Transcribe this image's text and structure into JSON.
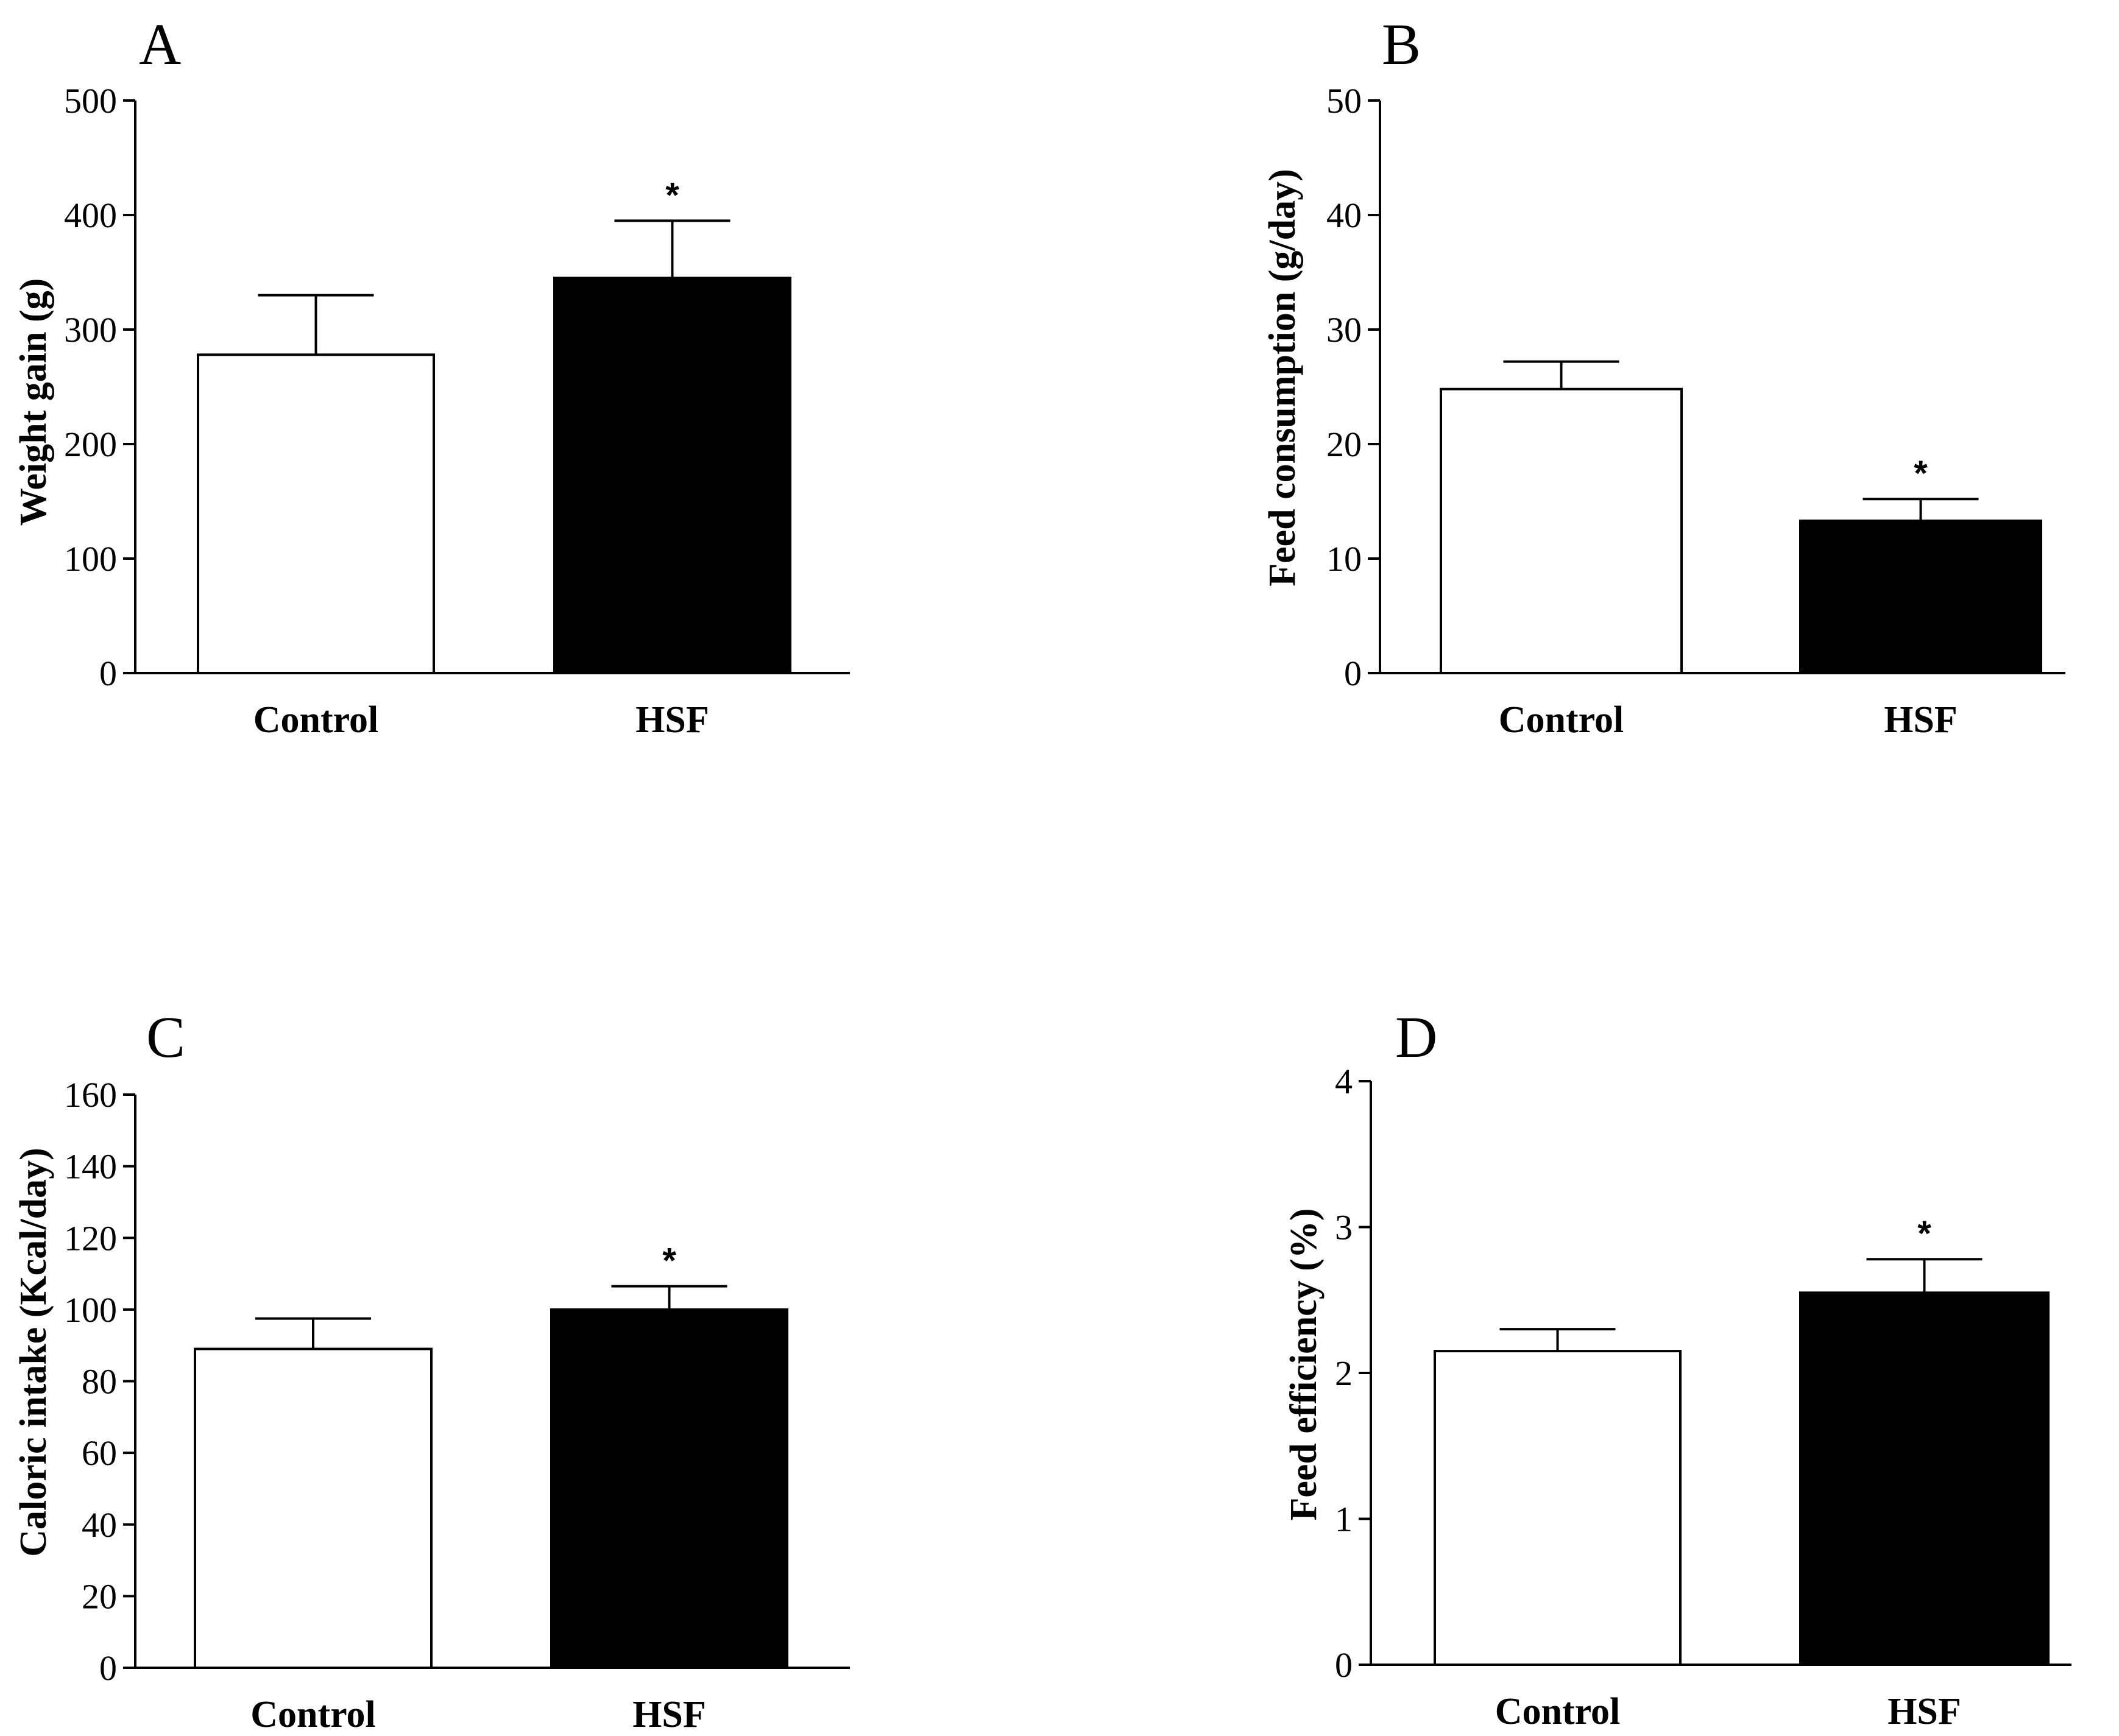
{
  "chart_data": [
    {
      "type": "bar",
      "panel": "A",
      "title": "",
      "xlabel": "",
      "ylabel": "Weight gain (g)",
      "ylim": [
        0,
        500
      ],
      "yticks": [
        0,
        100,
        200,
        300,
        400,
        500
      ],
      "categories": [
        "Control",
        "HSF"
      ],
      "values": [
        278,
        345
      ],
      "errors": [
        52,
        50
      ],
      "fills": [
        "#ffffff",
        "#000000"
      ],
      "significance": [
        "",
        "*"
      ]
    },
    {
      "type": "bar",
      "panel": "B",
      "title": "",
      "xlabel": "",
      "ylabel": "Feed consumption (g/day)",
      "ylim": [
        0,
        50
      ],
      "yticks": [
        0,
        10,
        20,
        30,
        40,
        50
      ],
      "categories": [
        "Control",
        "HSF"
      ],
      "values": [
        24.8,
        13.3
      ],
      "errors": [
        2.4,
        1.9
      ],
      "fills": [
        "#ffffff",
        "#000000"
      ],
      "significance": [
        "",
        "*"
      ]
    },
    {
      "type": "bar",
      "panel": "C",
      "title": "",
      "xlabel": "",
      "ylabel": "Caloric intake (Kcal/day)",
      "ylim": [
        0,
        160
      ],
      "yticks": [
        0,
        20,
        40,
        60,
        80,
        100,
        120,
        140,
        160
      ],
      "categories": [
        "Control",
        "HSF"
      ],
      "values": [
        89,
        100
      ],
      "errors": [
        8.5,
        6.5
      ],
      "fills": [
        "#ffffff",
        "#000000"
      ],
      "significance": [
        "",
        "*"
      ]
    },
    {
      "type": "bar",
      "panel": "D",
      "title": "",
      "xlabel": "",
      "ylabel": "Feed efficiency (%)",
      "ylim": [
        0,
        4
      ],
      "yticks": [
        0,
        1,
        2,
        3,
        4
      ],
      "categories": [
        "Control",
        "HSF"
      ],
      "values": [
        2.15,
        2.55
      ],
      "errors": [
        0.15,
        0.23
      ],
      "fills": [
        "#ffffff",
        "#000000"
      ],
      "significance": [
        "",
        "*"
      ]
    }
  ]
}
